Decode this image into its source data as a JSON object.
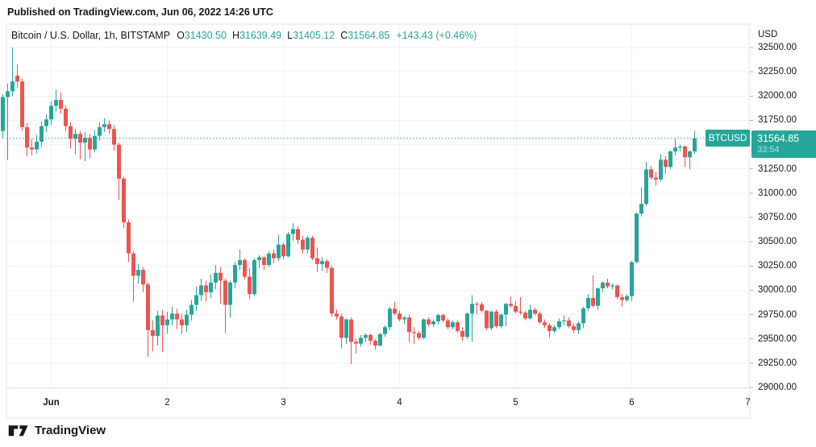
{
  "published_bar": {
    "text": "Published on TradingView.com, Jun 06, 2022 14:26 UTC"
  },
  "legend": {
    "symbol_title": "Bitcoin / U.S. Dollar, 1h, BITSTAMP",
    "ohlc": [
      {
        "label": "O",
        "value": "31430.50"
      },
      {
        "label": "H",
        "value": "31639.49"
      },
      {
        "label": "L",
        "value": "31405.12"
      },
      {
        "label": "C",
        "value": "31564.85"
      }
    ],
    "change": "+143.43 (+0.46%)"
  },
  "price_axis": {
    "currency_label": "USD",
    "labels": [
      {
        "price": 32500,
        "label": "32500.00"
      },
      {
        "price": 32250,
        "label": "32250.00"
      },
      {
        "price": 32000,
        "label": "32000.00"
      },
      {
        "price": 31750,
        "label": "31750.00"
      },
      {
        "price": 31250,
        "label": "31250.00"
      },
      {
        "price": 31000,
        "label": "31000.00"
      },
      {
        "price": 30750,
        "label": "30750.00"
      },
      {
        "price": 30500,
        "label": "30500.00"
      },
      {
        "price": 30250,
        "label": "30250.00"
      },
      {
        "price": 30000,
        "label": "30000.00"
      },
      {
        "price": 29750,
        "label": "29750.00"
      },
      {
        "price": 29500,
        "label": "29500.00"
      },
      {
        "price": 29250,
        "label": "29250.00"
      },
      {
        "price": 29000,
        "label": "29000.00"
      }
    ]
  },
  "time_axis": {
    "ticks": [
      {
        "index": 10,
        "label": "Jun",
        "bold": true
      },
      {
        "index": 34,
        "label": "2"
      },
      {
        "index": 58,
        "label": "3"
      },
      {
        "index": 82,
        "label": "4"
      },
      {
        "index": 106,
        "label": "5"
      },
      {
        "index": 130,
        "label": "6"
      },
      {
        "index": 154,
        "label": "7"
      }
    ]
  },
  "price_badge": {
    "symbol": "BTCUSD",
    "price": "31564.85",
    "countdown": "33:54"
  },
  "footer": {
    "brand": "TradingView"
  },
  "colors": {
    "up": "#26a69a",
    "down": "#ef5350",
    "grid": "#f0f3fa",
    "frame": "#e0e3eb",
    "tick": "#b2b5be",
    "text": "#131722",
    "badge_bg": "#26a69a"
  },
  "chart_data": {
    "type": "candlestick",
    "symbol": "BTCUSD",
    "exchange": "BITSTAMP",
    "interval": "1h",
    "title": "Bitcoin / U.S. Dollar",
    "last": {
      "open": 31430.5,
      "high": 31639.49,
      "low": 31405.12,
      "close": 31564.85,
      "change": 143.43,
      "change_pct": 0.46
    },
    "current_price": 31564.85,
    "y_axis": {
      "min": 29000,
      "max": 32500,
      "step": 250,
      "unit": "USD"
    },
    "x_axis_days": [
      "Jun",
      "2",
      "3",
      "4",
      "5",
      "6",
      "7"
    ],
    "grid": true,
    "candles_ohlc": [
      [
        31640,
        32020,
        31560,
        31990
      ],
      [
        31990,
        32130,
        31340,
        32050
      ],
      [
        32050,
        32500,
        32000,
        32150
      ],
      [
        32210,
        32330,
        32080,
        32150
      ],
      [
        32150,
        32180,
        31640,
        31680
      ],
      [
        31680,
        31720,
        31380,
        31470
      ],
      [
        31470,
        31560,
        31390,
        31450
      ],
      [
        31450,
        31600,
        31410,
        31530
      ],
      [
        31530,
        31740,
        31480,
        31690
      ],
      [
        31690,
        31810,
        31630,
        31760
      ],
      [
        31760,
        31950,
        31700,
        31900
      ],
      [
        31900,
        32070,
        31840,
        31960
      ],
      [
        31960,
        32040,
        31820,
        31870
      ],
      [
        31870,
        31900,
        31640,
        31690
      ],
      [
        31690,
        31730,
        31460,
        31560
      ],
      [
        31560,
        31660,
        31400,
        31610
      ],
      [
        31610,
        31640,
        31350,
        31520
      ],
      [
        31520,
        31630,
        31330,
        31570
      ],
      [
        31570,
        31610,
        31360,
        31450
      ],
      [
        31450,
        31650,
        31420,
        31590
      ],
      [
        31590,
        31730,
        31540,
        31680
      ],
      [
        31680,
        31770,
        31630,
        31710
      ],
      [
        31710,
        31750,
        31610,
        31660
      ],
      [
        31660,
        31700,
        31440,
        31500
      ],
      [
        31500,
        31520,
        30930,
        31150
      ],
      [
        31150,
        31170,
        30640,
        30700
      ],
      [
        30700,
        30730,
        30290,
        30380
      ],
      [
        30380,
        30400,
        29880,
        30150
      ],
      [
        30150,
        30270,
        30070,
        30210
      ],
      [
        30210,
        30240,
        29980,
        30060
      ],
      [
        30060,
        30080,
        29315,
        29590
      ],
      [
        29590,
        29690,
        29370,
        29530
      ],
      [
        29530,
        29790,
        29430,
        29740
      ],
      [
        29740,
        29800,
        29365,
        29640
      ],
      [
        29640,
        29780,
        29550,
        29700
      ],
      [
        29700,
        29830,
        29640,
        29760
      ],
      [
        29760,
        29810,
        29600,
        29700
      ],
      [
        29700,
        29760,
        29550,
        29640
      ],
      [
        29640,
        29800,
        29570,
        29750
      ],
      [
        29750,
        29900,
        29690,
        29850
      ],
      [
        29850,
        30040,
        29790,
        29950
      ],
      [
        29950,
        30120,
        29890,
        30050
      ],
      [
        30050,
        30100,
        29890,
        29980
      ],
      [
        29980,
        30160,
        29920,
        30080
      ],
      [
        30080,
        30260,
        30010,
        30180
      ],
      [
        30180,
        30240,
        29860,
        30100
      ],
      [
        30100,
        30120,
        29560,
        29850
      ],
      [
        29850,
        30100,
        29720,
        30080
      ],
      [
        30080,
        30290,
        30020,
        30260
      ],
      [
        30260,
        30420,
        30210,
        30310
      ],
      [
        30310,
        30330,
        30110,
        30140
      ],
      [
        30140,
        30230,
        29910,
        29960
      ],
      [
        29960,
        30330,
        29940,
        30310
      ],
      [
        30310,
        30360,
        30230,
        30340
      ],
      [
        30340,
        30350,
        30210,
        30260
      ],
      [
        30260,
        30400,
        30240,
        30380
      ],
      [
        30380,
        30420,
        30280,
        30330
      ],
      [
        30330,
        30570,
        30300,
        30470
      ],
      [
        30470,
        30490,
        30320,
        30350
      ],
      [
        30350,
        30600,
        30340,
        30580
      ],
      [
        30580,
        30690,
        30510,
        30630
      ],
      [
        30630,
        30660,
        30480,
        30520
      ],
      [
        30520,
        30560,
        30380,
        30420
      ],
      [
        30420,
        30560,
        30380,
        30540
      ],
      [
        30540,
        30560,
        30310,
        30330
      ],
      [
        30330,
        30440,
        30190,
        30270
      ],
      [
        30270,
        30340,
        30200,
        30300
      ],
      [
        30300,
        30320,
        30180,
        30230
      ],
      [
        30230,
        30250,
        29730,
        29760
      ],
      [
        29760,
        29800,
        29700,
        29730
      ],
      [
        29730,
        29760,
        29400,
        29510
      ],
      [
        29510,
        29710,
        29450,
        29700
      ],
      [
        29700,
        29720,
        29240,
        29470
      ],
      [
        29470,
        29500,
        29350,
        29450
      ],
      [
        29450,
        29540,
        29420,
        29510
      ],
      [
        29510,
        29560,
        29470,
        29540
      ],
      [
        29540,
        29550,
        29440,
        29480
      ],
      [
        29480,
        29500,
        29390,
        29430
      ],
      [
        29430,
        29560,
        29420,
        29550
      ],
      [
        29550,
        29640,
        29520,
        29620
      ],
      [
        29620,
        29830,
        29590,
        29810
      ],
      [
        29810,
        29880,
        29740,
        29760
      ],
      [
        29760,
        29790,
        29680,
        29700
      ],
      [
        29700,
        29730,
        29650,
        29720
      ],
      [
        29720,
        29750,
        29465,
        29570
      ],
      [
        29570,
        29620,
        29450,
        29560
      ],
      [
        29560,
        29580,
        29490,
        29510
      ],
      [
        29510,
        29710,
        29500,
        29700
      ],
      [
        29700,
        29720,
        29630,
        29650
      ],
      [
        29650,
        29700,
        29620,
        29680
      ],
      [
        29680,
        29760,
        29650,
        29745
      ],
      [
        29745,
        29760,
        29670,
        29690
      ],
      [
        29690,
        29710,
        29600,
        29620
      ],
      [
        29620,
        29690,
        29600,
        29670
      ],
      [
        29670,
        29690,
        29560,
        29580
      ],
      [
        29580,
        29620,
        29480,
        29520
      ],
      [
        29520,
        29770,
        29500,
        29760
      ],
      [
        29760,
        29950,
        29470,
        29860
      ],
      [
        29860,
        29880,
        29750,
        29855
      ],
      [
        29855,
        29880,
        29770,
        29790
      ],
      [
        29790,
        29800,
        29590,
        29610
      ],
      [
        29610,
        29790,
        29590,
        29780
      ],
      [
        29780,
        29800,
        29610,
        29630
      ],
      [
        29630,
        29760,
        29610,
        29750
      ],
      [
        29750,
        29870,
        29630,
        29860
      ],
      [
        29860,
        29935,
        29820,
        29840
      ],
      [
        29840,
        29890,
        29760,
        29780
      ],
      [
        29780,
        29930,
        29750,
        29770
      ],
      [
        29770,
        29790,
        29690,
        29710
      ],
      [
        29710,
        29850,
        29700,
        29800
      ],
      [
        29800,
        29820,
        29740,
        29760
      ],
      [
        29760,
        29780,
        29650,
        29670
      ],
      [
        29670,
        29700,
        29610,
        29640
      ],
      [
        29640,
        29660,
        29510,
        29580
      ],
      [
        29580,
        29640,
        29560,
        29620
      ],
      [
        29620,
        29710,
        29600,
        29680
      ],
      [
        29680,
        29740,
        29640,
        29690
      ],
      [
        29690,
        29720,
        29610,
        29630
      ],
      [
        29630,
        29660,
        29560,
        29590
      ],
      [
        29590,
        29680,
        29550,
        29660
      ],
      [
        29660,
        29830,
        29610,
        29815
      ],
      [
        29815,
        29960,
        29790,
        29920
      ],
      [
        29920,
        30155,
        29820,
        29840
      ],
      [
        29840,
        30030,
        29800,
        30020
      ],
      [
        30020,
        30090,
        29980,
        30080
      ],
      [
        30080,
        30120,
        30020,
        30040
      ],
      [
        30040,
        30070,
        30010,
        30050
      ],
      [
        30050,
        30060,
        29910,
        29930
      ],
      [
        29930,
        29960,
        29830,
        29900
      ],
      [
        29900,
        29960,
        29880,
        29940
      ],
      [
        29940,
        30300,
        29890,
        30290
      ],
      [
        30290,
        30800,
        30280,
        30790
      ],
      [
        30790,
        31060,
        30760,
        30890
      ],
      [
        30890,
        31320,
        30870,
        31245
      ],
      [
        31245,
        31280,
        31140,
        31160
      ],
      [
        31160,
        31220,
        31080,
        31140
      ],
      [
        31140,
        31400,
        31120,
        31345
      ],
      [
        31345,
        31380,
        31200,
        31270
      ],
      [
        31270,
        31440,
        31250,
        31430
      ],
      [
        31430,
        31560,
        31390,
        31470
      ],
      [
        31470,
        31500,
        31430,
        31480
      ],
      [
        31480,
        31490,
        31270,
        31370
      ],
      [
        31370,
        31440,
        31245,
        31430
      ],
      [
        31430.5,
        31639.49,
        31405.12,
        31564.85
      ]
    ]
  }
}
